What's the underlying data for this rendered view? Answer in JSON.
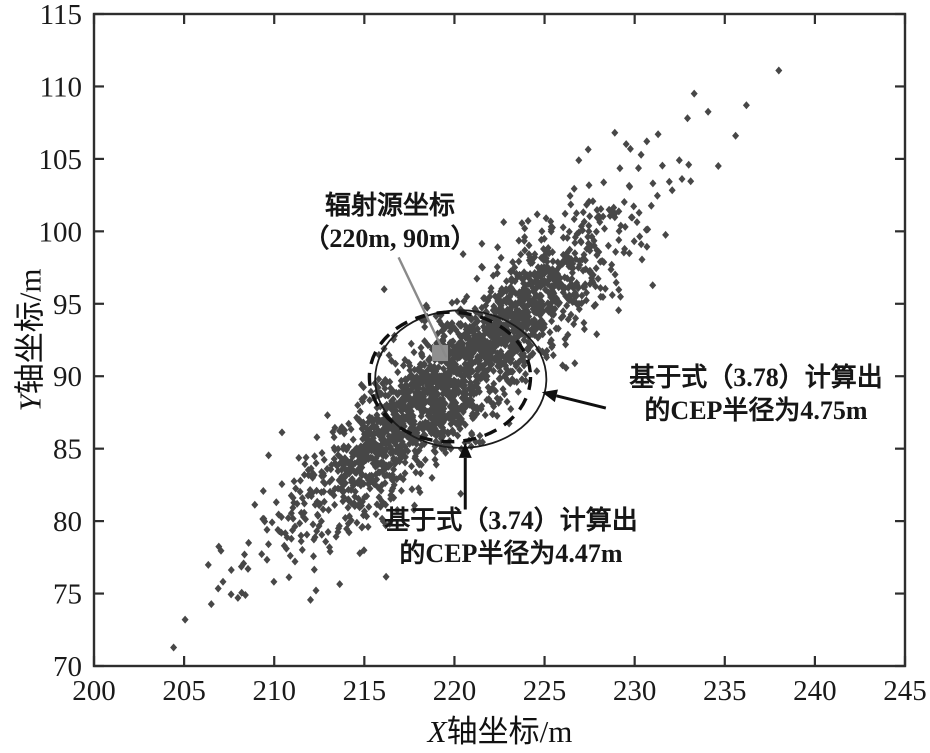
{
  "figure": {
    "background": "#ffffff"
  },
  "axes": {
    "x_title_var": "X",
    "x_title_rest": "轴坐标/m",
    "y_title_var": "Y",
    "y_title_rest": "轴坐标/m",
    "axis_color": "#2e2e2e",
    "tick_label_color": "#1a1a1a"
  },
  "annotations": {
    "source": {
      "line1": "辐射源坐标",
      "line2": "（220m, 90m）"
    },
    "cep378": {
      "line1": "基于式（3.78）计算出",
      "line2": "的CEP半径为4.75m"
    },
    "cep374": {
      "line1": "基于式（3.74）计算出",
      "line2": "的CEP半径为4.47m"
    }
  },
  "chart_data": {
    "type": "scatter",
    "title": "",
    "xlabel": "X轴坐标/m",
    "ylabel": "Y轴坐标/m",
    "xlim": [
      200,
      245
    ],
    "ylim": [
      70,
      115
    ],
    "x_ticks": [
      200,
      205,
      210,
      215,
      220,
      225,
      230,
      235,
      240,
      245
    ],
    "y_ticks": [
      70,
      75,
      80,
      85,
      90,
      95,
      100,
      105,
      110,
      115
    ],
    "grid": false,
    "legend": null,
    "scatter": {
      "marker": "diamond",
      "color": "#474747",
      "count": 2200,
      "seed": 20240613,
      "center": [
        220.1,
        90.1
      ],
      "sigma_major": 6.9,
      "sigma_minor": 1.5,
      "angle_deg": 51,
      "outliers": [
        [
          238.0,
          111.1
        ],
        [
          208.4,
          74.9
        ],
        [
          209.6,
          79.4
        ],
        [
          210.4,
          79.2
        ],
        [
          235.6,
          106.6
        ],
        [
          231.3,
          106.7
        ],
        [
          233.0,
          104.6
        ],
        [
          226.9,
          104.9
        ],
        [
          236.2,
          108.7
        ],
        [
          213.1,
          77.9
        ],
        [
          214.9,
          79.6
        ],
        [
          228.9,
          106.8
        ],
        [
          223.9,
          100.2
        ],
        [
          216.1,
          96.0
        ]
      ]
    },
    "source_point": {
      "x": 219.2,
      "y": 91.6,
      "color": "#8f8f8f",
      "true_x_m": 220,
      "true_y_m": 90
    },
    "cep_circles": [
      {
        "style": "solid",
        "center": [
          220.35,
          89.8
        ],
        "radius_m": 4.75,
        "equation": "3.78",
        "color": "#1c1c1c",
        "width": 1.8
      },
      {
        "style": "dashed",
        "center": [
          219.75,
          89.95
        ],
        "radius_m": 4.47,
        "equation": "3.74",
        "color": "#0f0f0f",
        "width": 3.4,
        "dash": "13 9"
      }
    ],
    "leader_line": {
      "from": [
        216.9,
        98.2
      ],
      "to": [
        219.55,
        91.3
      ],
      "color": "#8a8a8a",
      "width": 2.4
    },
    "arrows": [
      {
        "name": "cep378-arrow",
        "from": [
          228.4,
          87.8
        ],
        "to": [
          224.85,
          88.9
        ],
        "color": "#0f0f0f",
        "width": 3
      },
      {
        "name": "cep374-arrow",
        "from": [
          220.6,
          80.8
        ],
        "to": [
          220.6,
          85.4
        ],
        "color": "#0f0f0f",
        "width": 3
      }
    ]
  }
}
